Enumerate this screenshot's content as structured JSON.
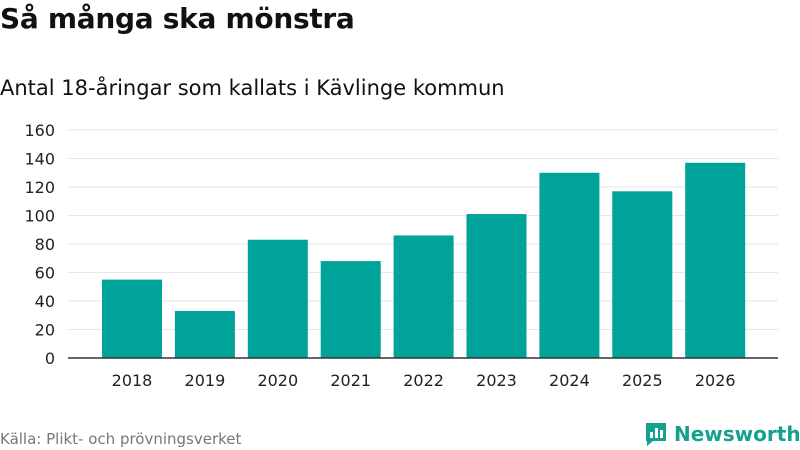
{
  "header": {
    "title": "Så många ska mönstra",
    "subtitle": "Antal 18-åringar som kallats i Kävlinge kommun"
  },
  "footer": {
    "source": "Källa: Plikt- och prövningsverket",
    "brand": "Newsworthy"
  },
  "colors": {
    "bar": "#00a39a",
    "brand": "#16a08e",
    "grid": "#e6e6e6"
  },
  "chart_data": {
    "type": "bar",
    "title": "Så många ska mönstra",
    "subtitle": "Antal 18-åringar som kallats i Kävlinge kommun",
    "xlabel": "",
    "ylabel": "",
    "categories": [
      "2018",
      "2019",
      "2020",
      "2021",
      "2022",
      "2023",
      "2024",
      "2025",
      "2026"
    ],
    "values": [
      55,
      33,
      83,
      68,
      86,
      101,
      130,
      117,
      137
    ],
    "ylim": [
      0,
      160
    ],
    "yticks": [
      0,
      20,
      40,
      60,
      80,
      100,
      120,
      140,
      160
    ],
    "grid": true,
    "legend": "none"
  }
}
